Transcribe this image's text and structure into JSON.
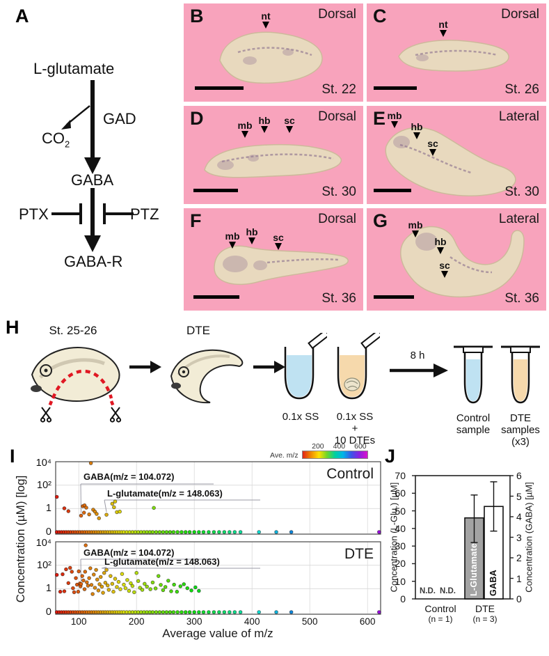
{
  "panel_a": {
    "label": "A",
    "nodes": {
      "substrate": "L-glutamate",
      "enzyme": "GAD",
      "byproduct_base": "CO",
      "byproduct_sub": "2",
      "product": "GABA",
      "inhibitor_left": "PTX",
      "inhibitor_right": "PTZ",
      "receptor": "GABA-R"
    }
  },
  "embryo_panels": [
    {
      "id": "B",
      "label": "B",
      "view": "Dorsal",
      "stage": "St. 22",
      "markers": [
        "nt"
      ]
    },
    {
      "id": "C",
      "label": "C",
      "view": "Dorsal",
      "stage": "St. 26",
      "markers": [
        "nt"
      ]
    },
    {
      "id": "D",
      "label": "D",
      "view": "Dorsal",
      "stage": "St. 30",
      "markers": [
        "mb",
        "hb",
        "sc"
      ]
    },
    {
      "id": "E",
      "label": "E",
      "view": "Lateral",
      "stage": "St. 30",
      "markers": [
        "mb",
        "hb",
        "sc"
      ]
    },
    {
      "id": "F",
      "label": "F",
      "view": "Dorsal",
      "stage": "St. 36",
      "markers": [
        "mb",
        "hb",
        "sc"
      ]
    },
    {
      "id": "G",
      "label": "G",
      "view": "Lateral",
      "stage": "St. 36",
      "markers": [
        "mb",
        "hb",
        "sc"
      ]
    }
  ],
  "panel_h": {
    "label": "H",
    "embryo_stage": "St. 25-26",
    "explant_label": "DTE",
    "tube1_label": "0.1x SS",
    "tube2_label_line1": "0.1x SS",
    "tube2_label_line2": "+",
    "tube2_label_line3": "10 DTEs",
    "duration_label": "8 h",
    "control_tube_line1": "Control",
    "control_tube_line2": "sample",
    "dte_tube_line1": "DTE",
    "dte_tube_line2": "samples",
    "dte_tube_line3": "(x3)"
  },
  "panel_i": {
    "label": "I"
  },
  "panel_j": {
    "label": "J"
  },
  "colors": {
    "panel_pink": "#f8a3bc",
    "embryo_beige": "#e8d9be",
    "stain_purple": "#8f7590",
    "tube_blue": "#bfe2f2",
    "tube_orange": "#f6d9ac",
    "cut_line_red": "#e01823",
    "bar_gray": "#a3a3a3",
    "colorbar_stops": [
      "#e02418",
      "#f08800",
      "#ffe000",
      "#6fd62a",
      "#00d0a0",
      "#00b4e8",
      "#3b55e8",
      "#8c1fe0",
      "#d912cc"
    ]
  },
  "chart_data": [
    {
      "id": "control_scatter",
      "type": "scatter",
      "title": "Control",
      "xlabel": "Average value of m/z",
      "ylabel": "Concentration (µM) [log]",
      "x_ticks": [
        100,
        200,
        300,
        400,
        500,
        600
      ],
      "y_tick_labels": [
        "10⁴",
        "10²",
        "1",
        "0"
      ],
      "y_scale": "log, ticks at 0, 1, 100, 10000",
      "x_range": [
        60,
        622
      ],
      "legend": {
        "label": "Ave. m/z",
        "ticks": [
          "200",
          "400",
          "600"
        ],
        "range": [
          50,
          660
        ],
        "position": "top-right above plot"
      },
      "annotations": [
        {
          "text": "GABA(m/z = 104.072)",
          "target_mz": 104
        },
        {
          "text": "L-glutamate(m/z = 148.063)",
          "target_mz": 148
        }
      ],
      "points": [
        [
          62,
          10
        ],
        [
          75,
          1.05
        ],
        [
          82,
          0.6
        ],
        [
          104,
          0.25
        ],
        [
          107,
          1.6
        ],
        [
          110,
          1.9
        ],
        [
          109,
          0.45
        ],
        [
          113,
          1.2
        ],
        [
          118,
          0.32
        ],
        [
          121,
          7500
        ],
        [
          125,
          0.8
        ],
        [
          128,
          0.55
        ],
        [
          131,
          0.35
        ],
        [
          135,
          0.15
        ],
        [
          148,
          0.3
        ],
        [
          158,
          2.6
        ],
        [
          161,
          1.3
        ],
        [
          163,
          4
        ],
        [
          166,
          0.5
        ],
        [
          171,
          0.55
        ],
        [
          230,
          1.15
        ]
      ],
      "baseline_mz": [
        62,
        66,
        70,
        74,
        78,
        82,
        86,
        90,
        94,
        98,
        102,
        106,
        110,
        114,
        118,
        122,
        126,
        130,
        134,
        138,
        142,
        146,
        150,
        154,
        158,
        162,
        166,
        170,
        174,
        178,
        183,
        188,
        193,
        198,
        203,
        208,
        213,
        218,
        223,
        228,
        234,
        240,
        246,
        252,
        258,
        264,
        271,
        278,
        285,
        292,
        300,
        308,
        316,
        325,
        334,
        343,
        352,
        361,
        370,
        380,
        412,
        442,
        468,
        620
      ]
    },
    {
      "id": "dte_scatter",
      "type": "scatter",
      "title": "DTE",
      "xlabel": "Average value of m/z",
      "ylabel": "Concentration (µM) [log]",
      "x_ticks": [
        100,
        200,
        300,
        400,
        500,
        600
      ],
      "y_tick_labels": [
        "10⁴",
        "10²",
        "1",
        "0"
      ],
      "x_range": [
        60,
        622
      ],
      "annotations": [
        {
          "text": "GABA(m/z = 104.072)",
          "target_mz": 104
        },
        {
          "text": "L-glutamate(m/z = 148.063)",
          "target_mz": 148
        }
      ],
      "points": [
        [
          62,
          15
        ],
        [
          68,
          0.55
        ],
        [
          72,
          17
        ],
        [
          75,
          0.6
        ],
        [
          78,
          45
        ],
        [
          82,
          3
        ],
        [
          85,
          60
        ],
        [
          88,
          28
        ],
        [
          90,
          1.1
        ],
        [
          92,
          0.5
        ],
        [
          95,
          8
        ],
        [
          97,
          2.2
        ],
        [
          99,
          0.55
        ],
        [
          100,
          30
        ],
        [
          102,
          2.8
        ],
        [
          103,
          1.6
        ],
        [
          104,
          2.5
        ],
        [
          106,
          12
        ],
        [
          108,
          5
        ],
        [
          110,
          0.9
        ],
        [
          111,
          28
        ],
        [
          112,
          5000
        ],
        [
          114,
          3.5
        ],
        [
          116,
          1.8
        ],
        [
          118,
          8
        ],
        [
          120,
          55
        ],
        [
          122,
          2.1
        ],
        [
          124,
          0.35
        ],
        [
          126,
          16
        ],
        [
          128,
          1.2
        ],
        [
          130,
          40
        ],
        [
          132,
          6
        ],
        [
          134,
          0.7
        ],
        [
          136,
          2.4
        ],
        [
          138,
          10
        ],
        [
          140,
          1.5
        ],
        [
          142,
          0.45
        ],
        [
          144,
          22
        ],
        [
          146,
          3.2
        ],
        [
          148,
          40
        ],
        [
          150,
          1.9
        ],
        [
          152,
          0.8
        ],
        [
          155,
          12
        ],
        [
          158,
          2.6
        ],
        [
          160,
          0.55
        ],
        [
          163,
          7
        ],
        [
          166,
          1.4
        ],
        [
          169,
          3.8
        ],
        [
          172,
          0.9
        ],
        [
          175,
          18
        ],
        [
          178,
          2.2
        ],
        [
          181,
          1.1
        ],
        [
          184,
          5.5
        ],
        [
          187,
          0.65
        ],
        [
          190,
          2.9
        ],
        [
          193,
          1.7
        ],
        [
          196,
          0.5
        ],
        [
          200,
          22
        ],
        [
          203,
          4.5
        ],
        [
          206,
          1.2
        ],
        [
          210,
          0.8
        ],
        [
          214,
          2.6
        ],
        [
          218,
          1.5
        ],
        [
          224,
          0.9
        ],
        [
          228,
          3.4
        ],
        [
          233,
          1.05
        ],
        [
          238,
          12
        ],
        [
          242,
          2.1
        ],
        [
          246,
          0.75
        ],
        [
          250,
          1.4
        ],
        [
          255,
          4.8
        ],
        [
          260,
          0.6
        ],
        [
          265,
          2.2
        ],
        [
          270,
          0.55
        ],
        [
          276,
          1.6
        ],
        [
          282,
          2.4
        ],
        [
          288,
          1.1
        ],
        [
          295,
          0.7
        ],
        [
          302,
          1.3
        ],
        [
          308,
          0.65
        ]
      ],
      "baseline_mz": [
        62,
        66,
        70,
        74,
        78,
        82,
        86,
        90,
        94,
        98,
        102,
        106,
        110,
        114,
        118,
        122,
        126,
        130,
        134,
        138,
        142,
        146,
        150,
        154,
        158,
        162,
        166,
        170,
        174,
        178,
        183,
        188,
        193,
        198,
        203,
        208,
        213,
        218,
        223,
        228,
        234,
        240,
        246,
        252,
        258,
        264,
        271,
        278,
        285,
        292,
        300,
        308,
        316,
        325,
        334,
        343,
        352,
        361,
        370,
        380,
        412,
        442,
        468,
        620
      ]
    },
    {
      "id": "dte_release_bars",
      "type": "bar",
      "left_axis": {
        "label": "Concentration (L-Glu.) [µM]",
        "ticks": [
          0,
          10,
          20,
          30,
          40,
          50,
          60,
          70
        ],
        "range": [
          0,
          70
        ]
      },
      "right_axis": {
        "label": "Concentration (GABA) [µM]",
        "ticks": [
          0,
          1,
          2,
          3,
          4,
          5,
          6
        ],
        "range": [
          0,
          6
        ]
      },
      "groups": [
        {
          "label": "Control",
          "n_label": "(n = 1)",
          "bars": [
            {
              "name": "L-Glutamate",
              "value": null,
              "nd_label": "N.D."
            },
            {
              "name": "GABA",
              "value": null,
              "nd_label": "N.D."
            }
          ]
        },
        {
          "label": "DTE",
          "n_label": "(n = 3)",
          "bars": [
            {
              "name": "L-Glutamate",
              "axis": "left",
              "value": 46,
              "err_low": 32,
              "err_high": 59,
              "fill": "#a3a3a3"
            },
            {
              "name": "GABA",
              "axis": "right",
              "value": 4.5,
              "err_low": 3.3,
              "err_high": 5.7,
              "fill": "#ffffff"
            }
          ]
        }
      ]
    }
  ]
}
